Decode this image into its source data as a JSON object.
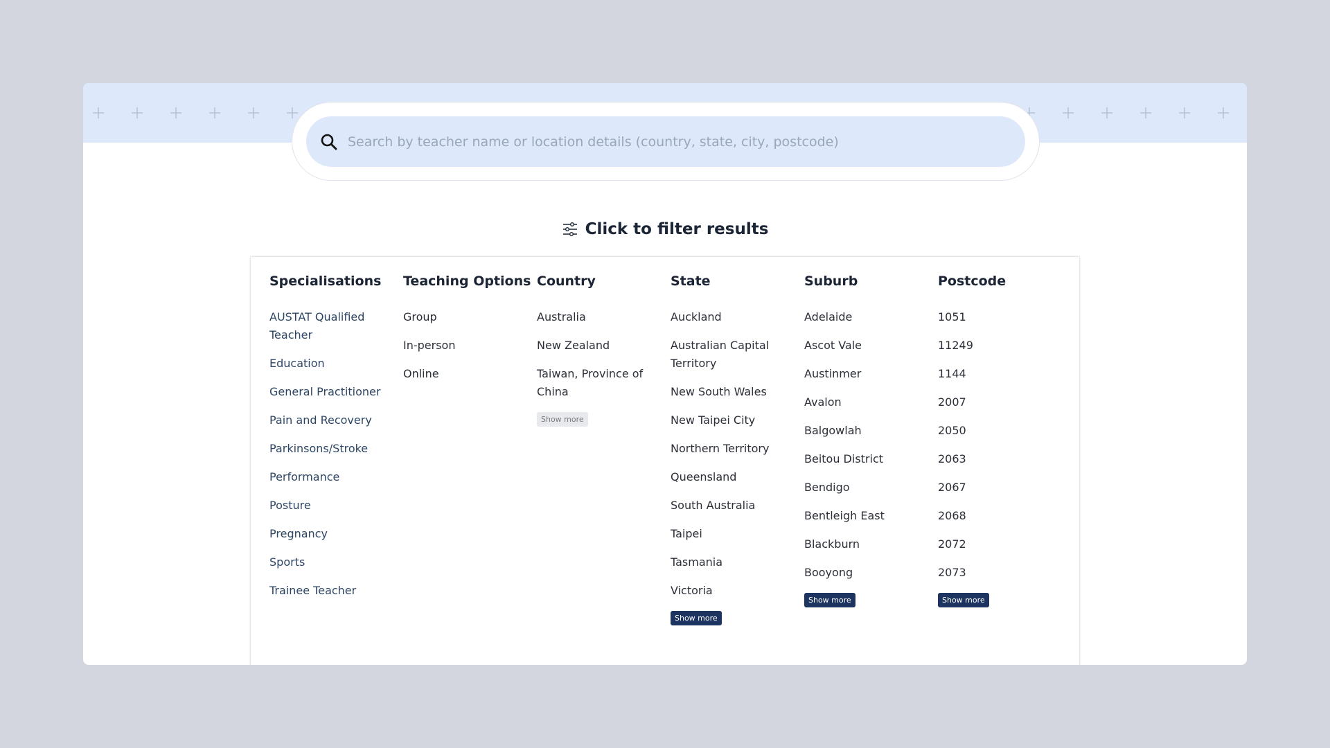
{
  "search": {
    "placeholder": "Search by teacher name or location details (country, state, city, postcode)"
  },
  "filter": {
    "title": "Click to filter results"
  },
  "columns": [
    {
      "title": "Specialisations",
      "items": [
        "AUSTAT Qualified Teacher",
        "Education",
        "General Practitioner",
        "Pain and Recovery",
        "Parkinsons/Stroke",
        "Performance",
        "Posture",
        "Pregnancy",
        "Sports",
        "Trainee Teacher"
      ]
    },
    {
      "title": "Teaching Options",
      "items": [
        "Group",
        "In-person",
        "Online"
      ]
    },
    {
      "title": "Country",
      "items": [
        "Australia",
        "New Zealand",
        "Taiwan, Province of China"
      ],
      "show_more": "Show more"
    },
    {
      "title": "State",
      "items": [
        "Auckland",
        "Australian Capital Territory",
        "New South Wales",
        "New Taipei City",
        "Northern Territory",
        "Queensland",
        "South Australia",
        "Taipei",
        "Tasmania",
        "Victoria"
      ],
      "show_more": "Show more"
    },
    {
      "title": "Suburb",
      "items": [
        "Adelaide",
        "Ascot Vale",
        "Austinmer",
        "Avalon",
        "Balgowlah",
        "Beitou District",
        "Bendigo",
        "Bentleigh East",
        "Blackburn",
        "Booyong"
      ],
      "show_more": "Show more"
    },
    {
      "title": "Postcode",
      "items": [
        "1051",
        "11249",
        "1144",
        "2007",
        "2050",
        "2063",
        "2067",
        "2068",
        "2072",
        "2073"
      ],
      "show_more": "Show more"
    }
  ]
}
